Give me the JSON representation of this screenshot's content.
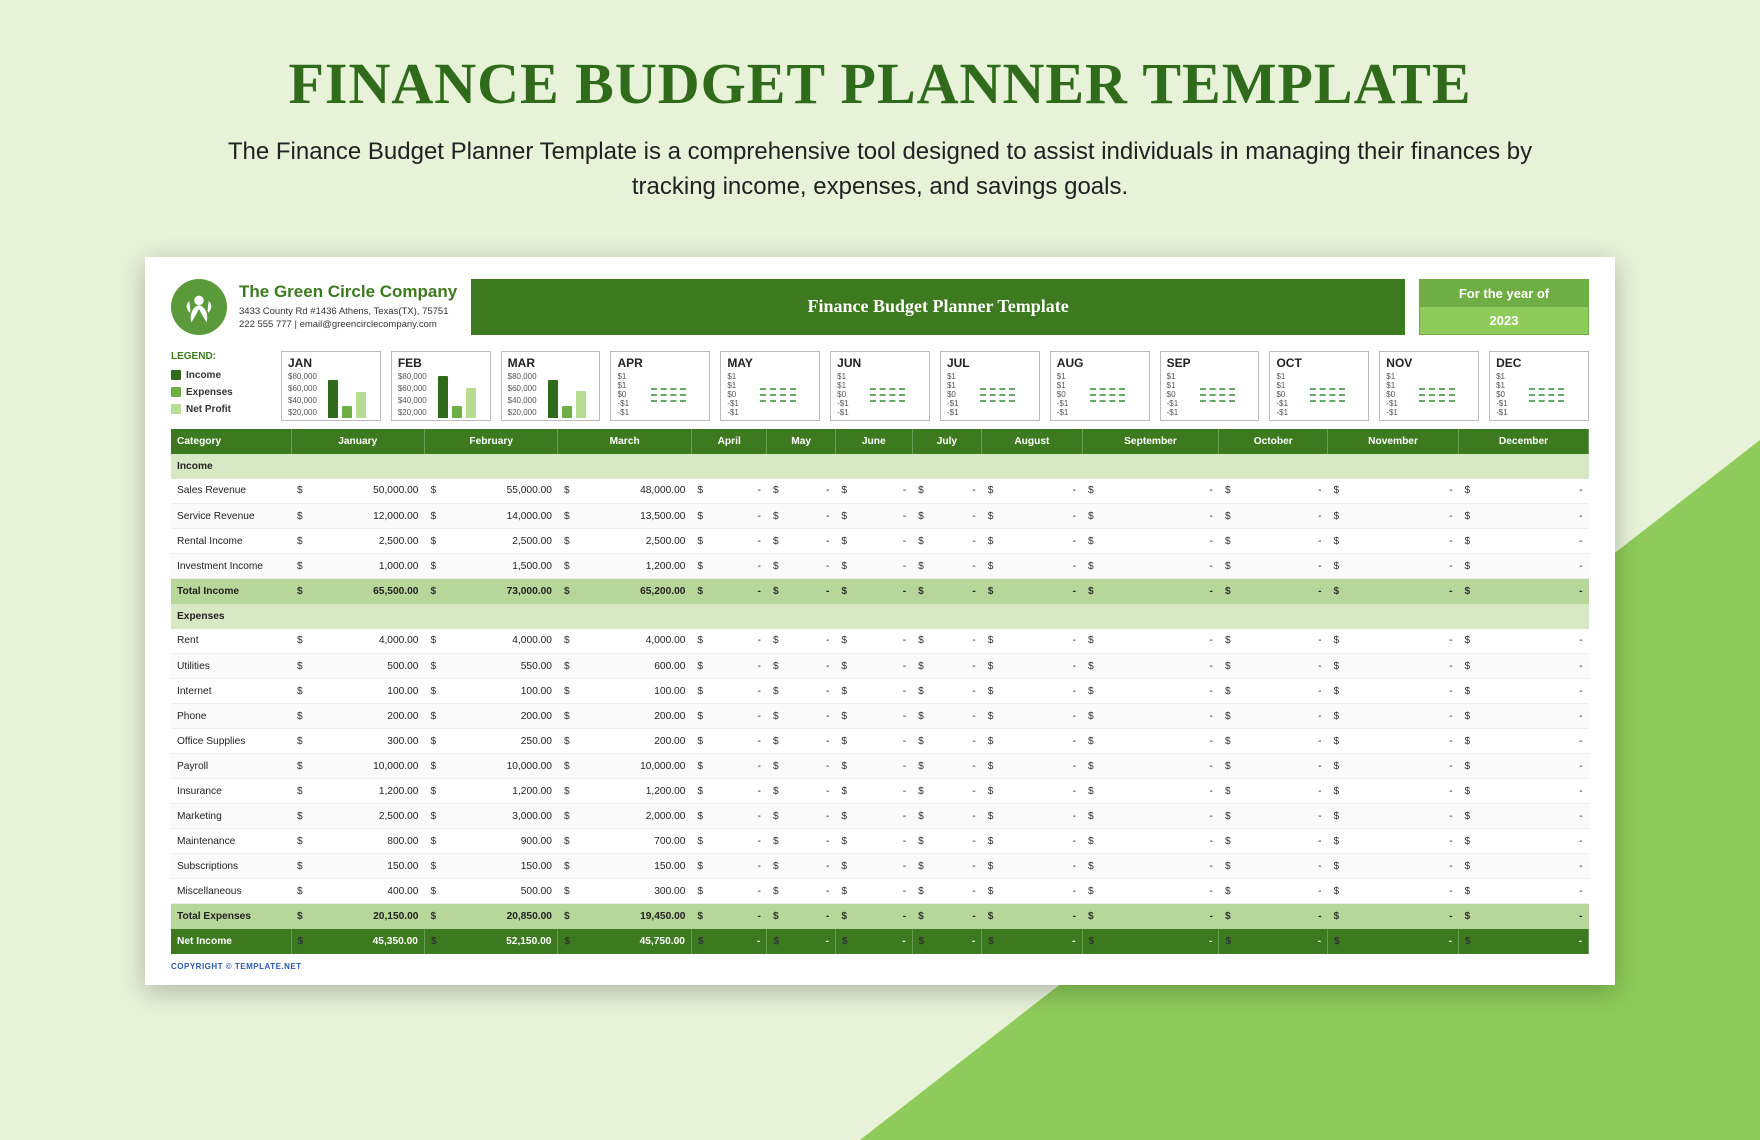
{
  "hero": {
    "title": "FINANCE BUDGET PLANNER TEMPLATE",
    "subtitle": "The Finance Budget Planner Template is a comprehensive tool designed to assist individuals in managing their finances by tracking income, expenses, and savings goals."
  },
  "colors": {
    "page_bg": "#e7f2d9",
    "accent_triangle": "#8ecb5a",
    "brand_dark": "#3d7a1f",
    "brand_mid": "#6fae44",
    "brand_light": "#8ecb5a",
    "section_bg": "#d6e8c4",
    "total_bg": "#b7d79a",
    "income_bar": "#2f6b1a",
    "expense_bar": "#6fae44",
    "netprofit_bar": "#b7dd92"
  },
  "company": {
    "name": "The Green Circle Company",
    "address": "3433 County Rd #1436 Athens, Texas(TX), 75751",
    "contact": "222 555 777 | email@greencirclecompany.com"
  },
  "titleBar": "Finance Budget Planner Template",
  "year": {
    "label": "For the year of",
    "value": "2023"
  },
  "legend": {
    "title": "LEGEND:",
    "items": [
      {
        "label": "Income",
        "color": "#2f6b1a"
      },
      {
        "label": "Expenses",
        "color": "#6fae44"
      },
      {
        "label": "Net Profit",
        "color": "#b7dd92"
      }
    ]
  },
  "miniCharts": {
    "months_full": [
      "JAN",
      "FEB",
      "MAR",
      "APR",
      "MAY",
      "JUN",
      "JUL",
      "AUG",
      "SEP",
      "OCT",
      "NOV",
      "DEC"
    ],
    "ylabels_active": [
      "$80,000",
      "$60,000",
      "$40,000",
      "$20,000"
    ],
    "ylabels_empty": [
      "$1",
      "$1",
      "$0",
      "-$1",
      "-$1"
    ],
    "active_months": 3,
    "bars": {
      "max": 80000,
      "series": [
        {
          "color": "#2f6b1a",
          "values": [
            65500,
            73000,
            65200
          ]
        },
        {
          "color": "#6fae44",
          "values": [
            20150,
            20850,
            19450
          ]
        },
        {
          "color": "#b7dd92",
          "values": [
            45350,
            52150,
            45750
          ]
        }
      ]
    }
  },
  "table": {
    "firstHeader": "Category",
    "months": [
      "January",
      "February",
      "March",
      "April",
      "May",
      "June",
      "July",
      "August",
      "September",
      "October",
      "November",
      "December"
    ],
    "sections": [
      {
        "name": "Income",
        "rows": [
          {
            "label": "Sales Revenue",
            "values": [
              "50,000.00",
              "55,000.00",
              "48,000.00",
              "-",
              "-",
              "-",
              "-",
              "-",
              "-",
              "-",
              "-",
              "-"
            ]
          },
          {
            "label": "Service Revenue",
            "values": [
              "12,000.00",
              "14,000.00",
              "13,500.00",
              "-",
              "-",
              "-",
              "-",
              "-",
              "-",
              "-",
              "-",
              "-"
            ]
          },
          {
            "label": "Rental Income",
            "values": [
              "2,500.00",
              "2,500.00",
              "2,500.00",
              "-",
              "-",
              "-",
              "-",
              "-",
              "-",
              "-",
              "-",
              "-"
            ]
          },
          {
            "label": "Investment Income",
            "values": [
              "1,000.00",
              "1,500.00",
              "1,200.00",
              "-",
              "-",
              "-",
              "-",
              "-",
              "-",
              "-",
              "-",
              "-"
            ]
          }
        ],
        "total": {
          "label": "Total Income",
          "values": [
            "65,500.00",
            "73,000.00",
            "65,200.00",
            "-",
            "-",
            "-",
            "-",
            "-",
            "-",
            "-",
            "-",
            "-"
          ]
        }
      },
      {
        "name": "Expenses",
        "rows": [
          {
            "label": "Rent",
            "values": [
              "4,000.00",
              "4,000.00",
              "4,000.00",
              "-",
              "-",
              "-",
              "-",
              "-",
              "-",
              "-",
              "-",
              "-"
            ]
          },
          {
            "label": "Utilities",
            "values": [
              "500.00",
              "550.00",
              "600.00",
              "-",
              "-",
              "-",
              "-",
              "-",
              "-",
              "-",
              "-",
              "-"
            ]
          },
          {
            "label": "Internet",
            "values": [
              "100.00",
              "100.00",
              "100.00",
              "-",
              "-",
              "-",
              "-",
              "-",
              "-",
              "-",
              "-",
              "-"
            ]
          },
          {
            "label": "Phone",
            "values": [
              "200.00",
              "200.00",
              "200.00",
              "-",
              "-",
              "-",
              "-",
              "-",
              "-",
              "-",
              "-",
              "-"
            ]
          },
          {
            "label": "Office Supplies",
            "values": [
              "300.00",
              "250.00",
              "200.00",
              "-",
              "-",
              "-",
              "-",
              "-",
              "-",
              "-",
              "-",
              "-"
            ]
          },
          {
            "label": "Payroll",
            "values": [
              "10,000.00",
              "10,000.00",
              "10,000.00",
              "-",
              "-",
              "-",
              "-",
              "-",
              "-",
              "-",
              "-",
              "-"
            ]
          },
          {
            "label": "Insurance",
            "values": [
              "1,200.00",
              "1,200.00",
              "1,200.00",
              "-",
              "-",
              "-",
              "-",
              "-",
              "-",
              "-",
              "-",
              "-"
            ]
          },
          {
            "label": "Marketing",
            "values": [
              "2,500.00",
              "3,000.00",
              "2,000.00",
              "-",
              "-",
              "-",
              "-",
              "-",
              "-",
              "-",
              "-",
              "-"
            ]
          },
          {
            "label": "Maintenance",
            "values": [
              "800.00",
              "900.00",
              "700.00",
              "-",
              "-",
              "-",
              "-",
              "-",
              "-",
              "-",
              "-",
              "-"
            ]
          },
          {
            "label": "Subscriptions",
            "values": [
              "150.00",
              "150.00",
              "150.00",
              "-",
              "-",
              "-",
              "-",
              "-",
              "-",
              "-",
              "-",
              "-"
            ]
          },
          {
            "label": "Miscellaneous",
            "values": [
              "400.00",
              "500.00",
              "300.00",
              "-",
              "-",
              "-",
              "-",
              "-",
              "-",
              "-",
              "-",
              "-"
            ]
          }
        ],
        "total": {
          "label": "Total Expenses",
          "values": [
            "20,150.00",
            "20,850.00",
            "19,450.00",
            "-",
            "-",
            "-",
            "-",
            "-",
            "-",
            "-",
            "-",
            "-"
          ]
        }
      }
    ],
    "net": {
      "label": "Net Income",
      "values": [
        "45,350.00",
        "52,150.00",
        "45,750.00",
        "-",
        "-",
        "-",
        "-",
        "-",
        "-",
        "-",
        "-",
        "-"
      ]
    }
  },
  "footer": "COPYRIGHT © TEMPLATE.NET"
}
